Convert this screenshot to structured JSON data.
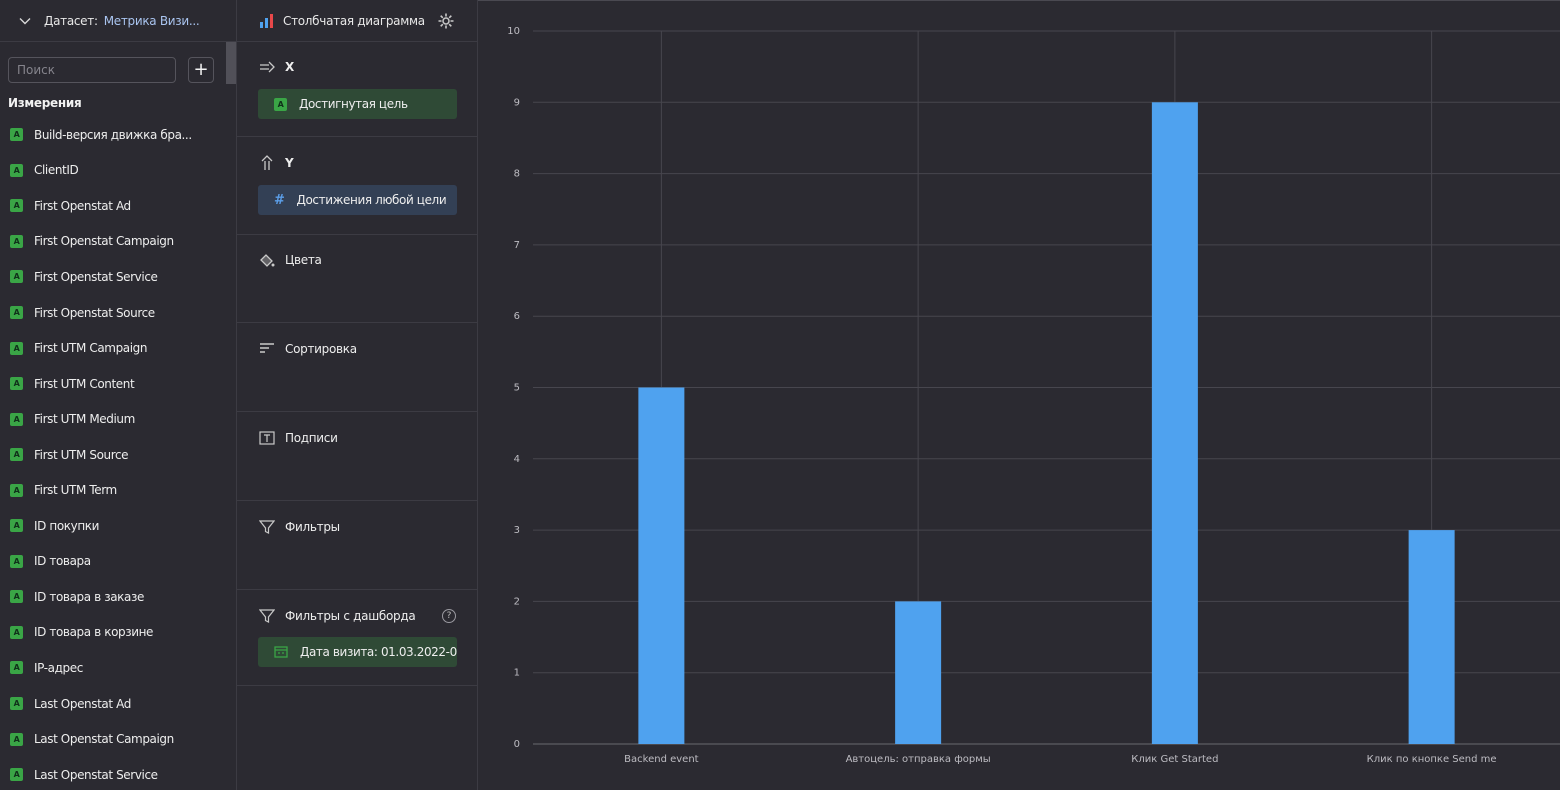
{
  "dataset": {
    "label": "Датасет:",
    "name": "Метрика Визи..."
  },
  "search": {
    "placeholder": "Поиск"
  },
  "add_button": "+",
  "dimensions": {
    "title": "Измерения",
    "items": [
      "Build-версия движка бра...",
      "ClientID",
      "First Openstat Ad",
      "First Openstat Campaign",
      "First Openstat Service",
      "First Openstat Source",
      "First UTM Campaign",
      "First UTM Content",
      "First UTM Medium",
      "First UTM Source",
      "First UTM Term",
      "ID покупки",
      "ID товара",
      "ID товара в заказе",
      "ID товара в корзине",
      "IP-адрес",
      "Last Openstat Ad",
      "Last Openstat Campaign",
      "Last Openstat Service"
    ],
    "type_badge": "A"
  },
  "visualization": {
    "title": "Столбчатая диаграмма"
  },
  "sections": {
    "x": {
      "label": "X",
      "field": "Достигнутая цель",
      "badge": "A"
    },
    "y": {
      "label": "Y",
      "field": "Достижения любой цели",
      "badge": "#"
    },
    "colors": {
      "label": "Цвета"
    },
    "sort": {
      "label": "Сортировка"
    },
    "labels": {
      "label": "Подписи"
    },
    "filters": {
      "label": "Фильтры"
    },
    "dash_filters": {
      "label": "Фильтры с дашборда",
      "help": "?",
      "field": "Дата визита: 01.03.2022-0..."
    }
  },
  "colors": {
    "bar": "#4fa2ef",
    "green_badge": "#3aa546",
    "accent_blue": "#5b9ee8"
  },
  "chart_data": {
    "type": "bar",
    "categories": [
      "Backend event",
      "Автоцель: отправка формы",
      "Клик Get Started",
      "Клик по кнопке Send me"
    ],
    "values": [
      5,
      2,
      9,
      3
    ],
    "title": "",
    "xlabel": "",
    "ylabel": "",
    "ylim": [
      0,
      10
    ],
    "yticks": [
      "0",
      "1",
      "2",
      "3",
      "4",
      "5",
      "6",
      "7",
      "8",
      "9",
      "10"
    ],
    "grid": true
  }
}
